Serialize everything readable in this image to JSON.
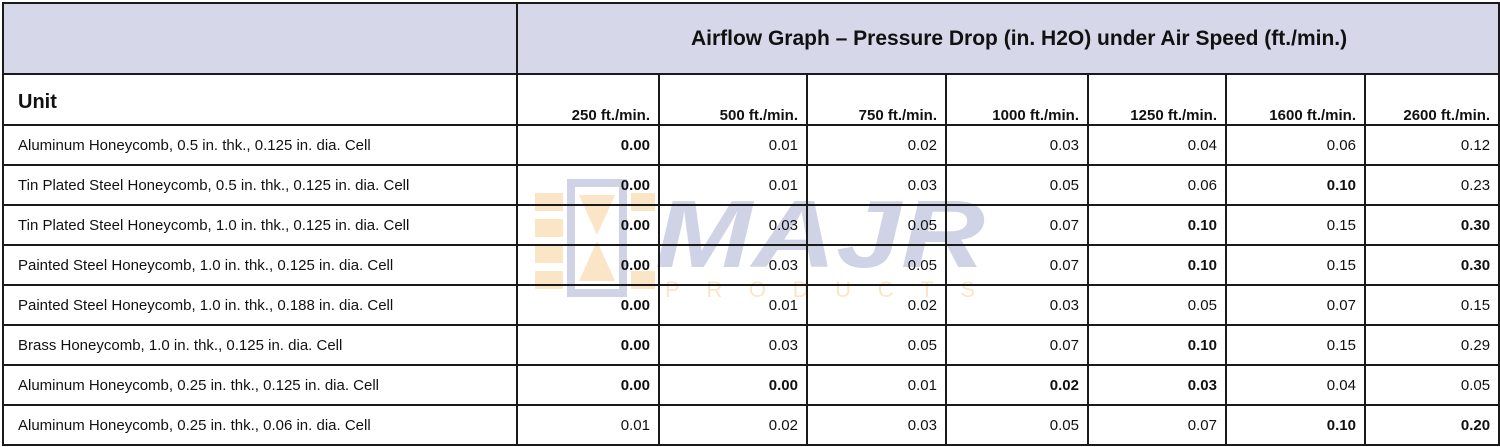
{
  "table": {
    "title": "Airflow Graph – Pressure Drop (in. H2O) under Air Speed (ft./min.)",
    "unit_header": "Unit",
    "columns": [
      "250 ft./min.",
      "500 ft./min.",
      "750 ft./min.",
      "1000 ft./min.",
      "1250 ft./min.",
      "1600 ft./min.",
      "2600 ft./min."
    ],
    "rows": [
      {
        "unit": "Aluminum Honeycomb, 0.5 in. thk., 0.125 in. dia. Cell",
        "values": [
          "0.00",
          "0.01",
          "0.02",
          "0.03",
          "0.04",
          "0.06",
          "0.12"
        ]
      },
      {
        "unit": "Tin Plated Steel Honeycomb, 0.5 in. thk., 0.125 in. dia. Cell",
        "values": [
          "0.00",
          "0.01",
          "0.03",
          "0.05",
          "0.06",
          "0.10",
          "0.23"
        ]
      },
      {
        "unit": "Tin Plated Steel Honeycomb, 1.0 in. thk., 0.125 in. dia.  Cell",
        "values": [
          "0.00",
          "0.03",
          "0.05",
          "0.07",
          "0.10",
          "0.15",
          "0.30"
        ]
      },
      {
        "unit": "Painted Steel Honeycomb, 1.0 in. thk., 0.125 in. dia. Cell",
        "values": [
          "0.00",
          "0.03",
          "0.05",
          "0.07",
          "0.10",
          "0.15",
          "0.30"
        ]
      },
      {
        "unit": "Painted Steel Honeycomb, 1.0 in. thk., 0.188 in. dia. Cell",
        "values": [
          "0.00",
          "0.01",
          "0.02",
          "0.03",
          "0.05",
          "0.07",
          "0.15"
        ]
      },
      {
        "unit": "Brass Honeycomb, 1.0 in. thk., 0.125 in. dia. Cell",
        "values": [
          "0.00",
          "0.03",
          "0.05",
          "0.07",
          "0.10",
          "0.15",
          "0.29"
        ]
      },
      {
        "unit": "Aluminum Honeycomb, 0.25 in. thk., 0.125 in. dia. Cell",
        "values": [
          "0.00",
          "0.00",
          "0.01",
          "0.02",
          "0.03",
          "0.04",
          "0.05"
        ]
      },
      {
        "unit": "Aluminum Honeycomb, 0.25 in. thk., 0.06 in. dia. Cell",
        "values": [
          "0.01",
          "0.02",
          "0.03",
          "0.05",
          "0.07",
          "0.10",
          "0.20"
        ]
      }
    ]
  },
  "watermark": {
    "brand": "MAJR",
    "tagline": "PRODUCTS",
    "colors": {
      "blue": "#5b63a8",
      "orange": "#f2a33a"
    }
  },
  "colors": {
    "header_bg": "#d6d8ea",
    "border": "#1a1a1a"
  }
}
